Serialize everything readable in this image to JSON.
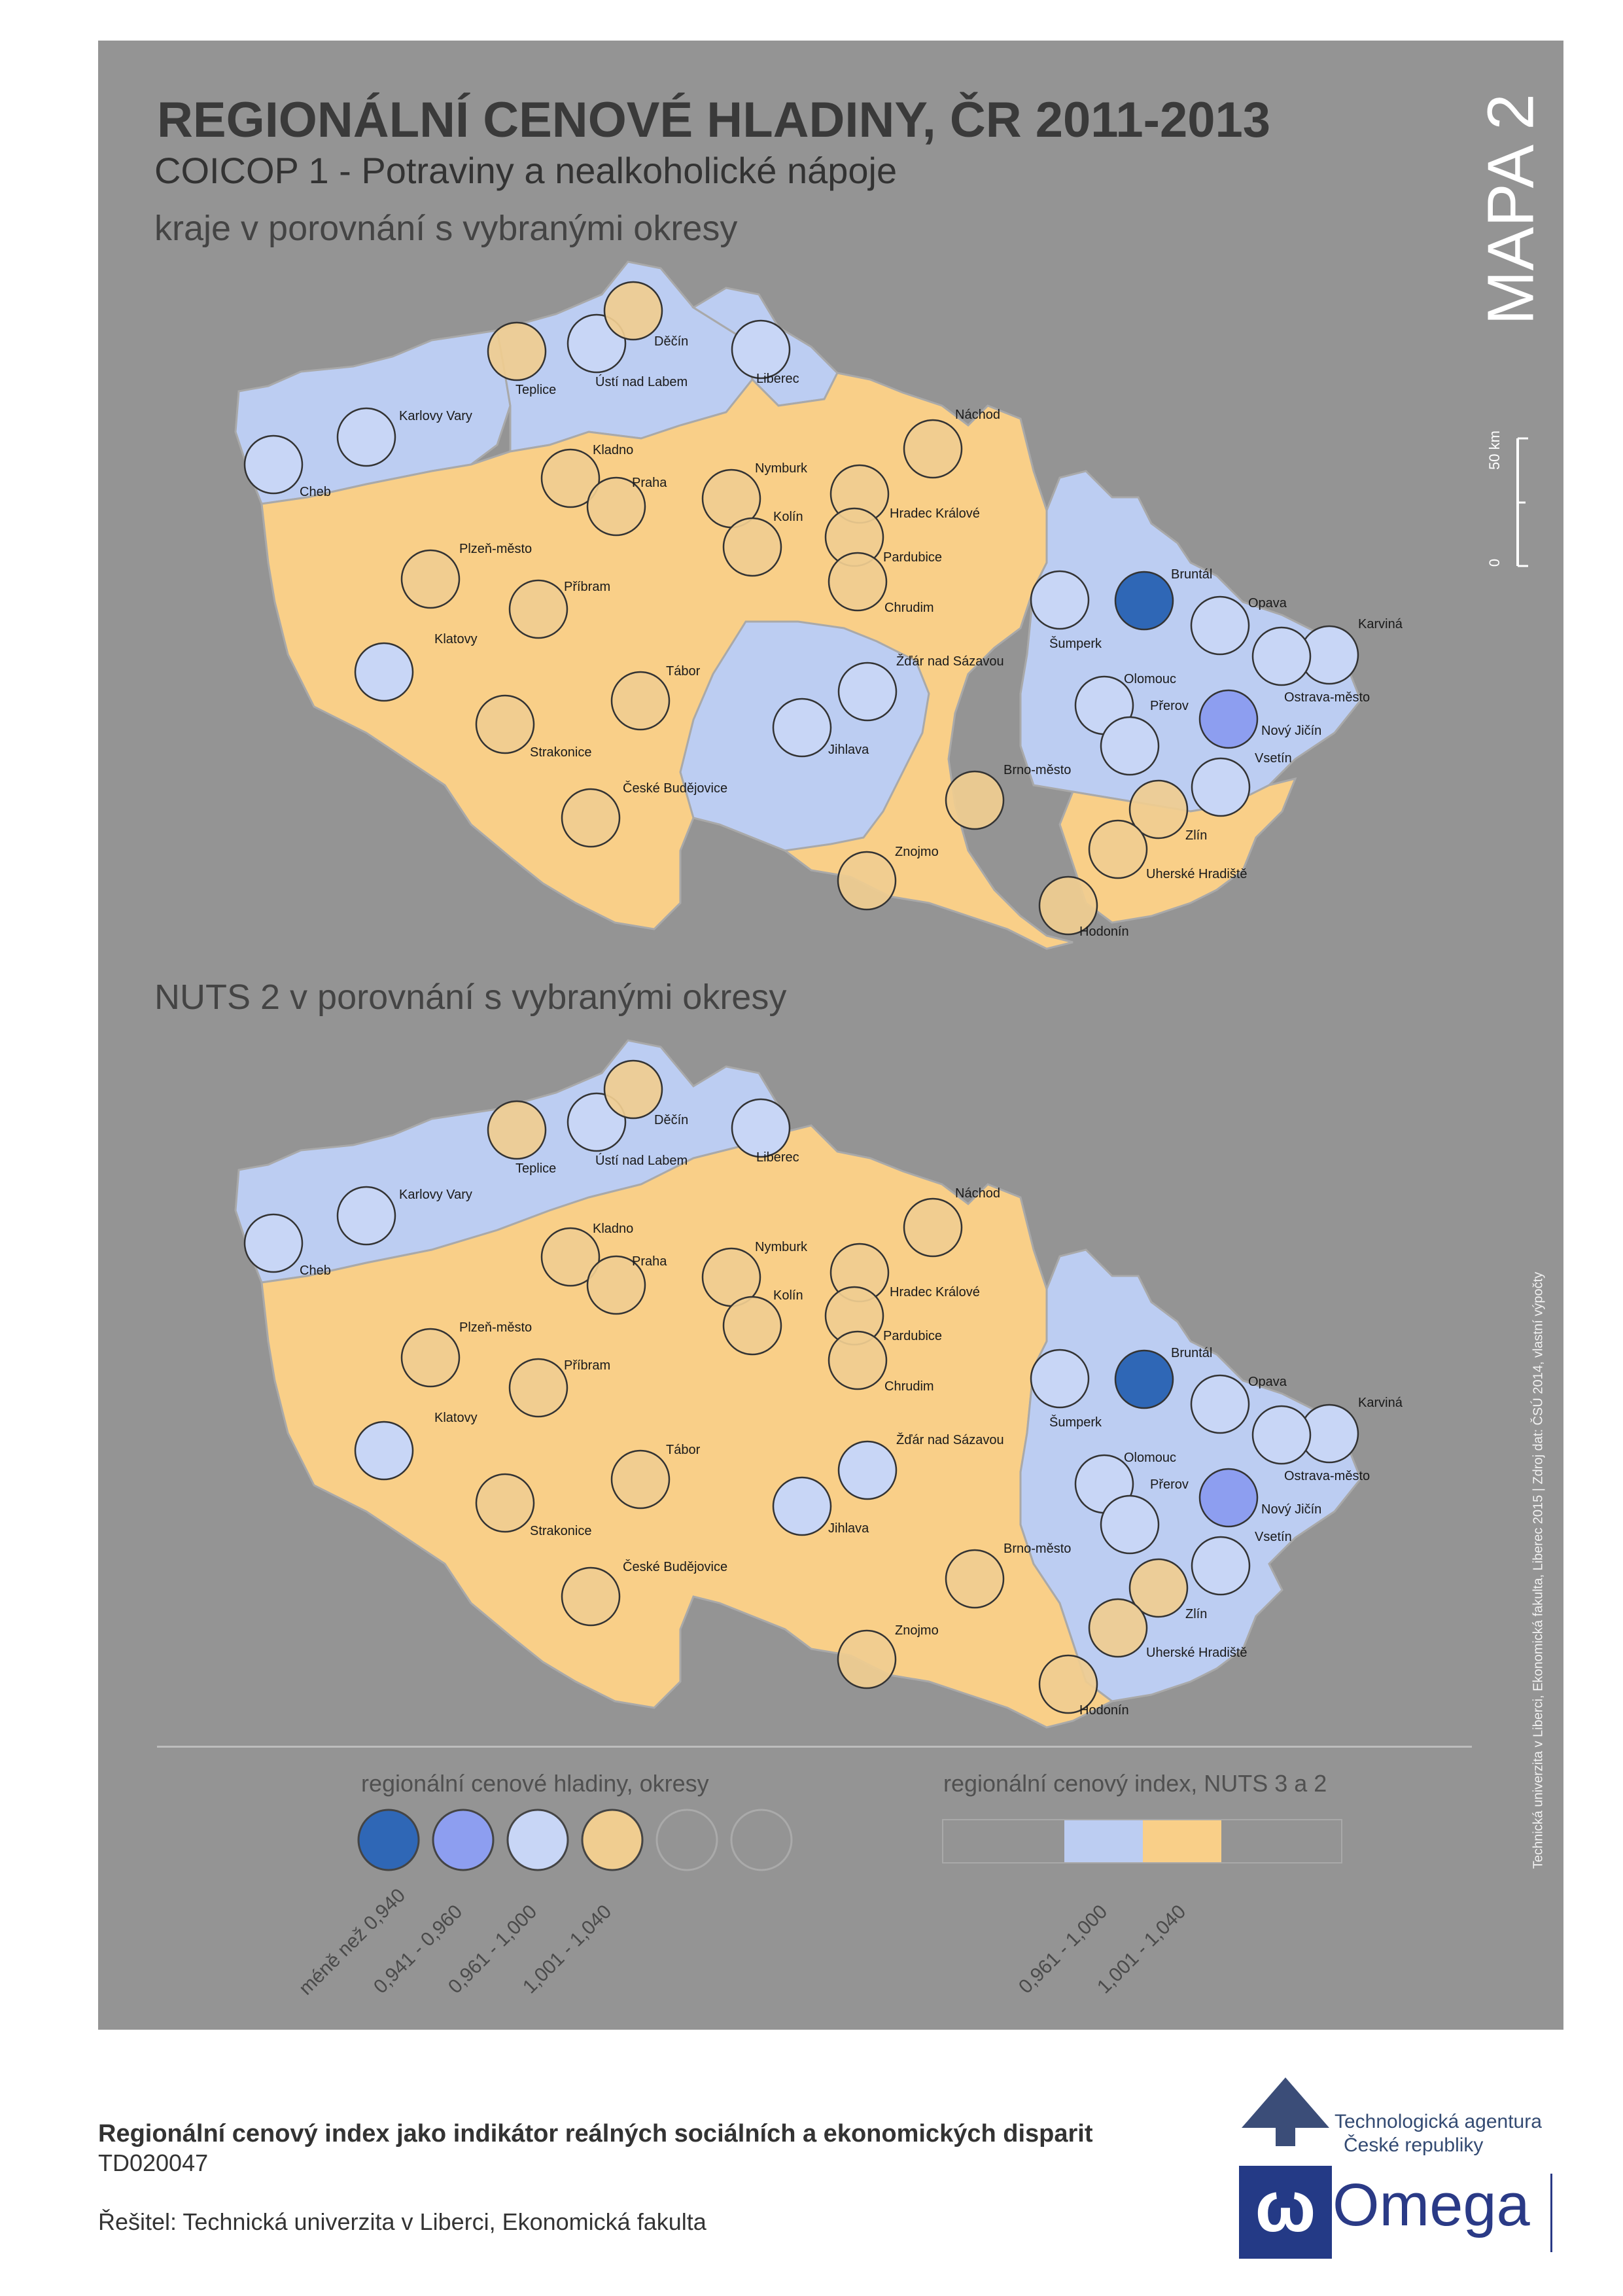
{
  "title": "REGIONÁLNÍ CENOVÉ HLADINY, ČR 2011-2013",
  "subtitle": "COICOP 1 - Potraviny a nealkoholické nápoje",
  "map_label": "MAPA 2",
  "section1_title": "kraje v porovnání s vybranými okresy",
  "section2_title": "NUTS 2 v porovnání s vybranými okresy",
  "scale": {
    "top": "50 km",
    "bottom": "0"
  },
  "credit": "Technická univerzita v Liberci, Ekonomická fakulta, Liberec 2015 | Zdroj dat: ČSÚ 2014, vlastní výpočty",
  "colors": {
    "background": "#949494",
    "region_blue": "#bccdf2",
    "region_orange": "#f9cf88",
    "class1": "#2f67b6",
    "class2": "#8d9ef0",
    "class3": "#c8d6f6",
    "class4": "#f0cd90"
  },
  "legend_districts": {
    "title": "regionální cenové hladiny, okresy",
    "classes": [
      "méně než 0,940",
      "0,941 - 0,960",
      "0,961 - 1,000",
      "1,001 - 1,040"
    ]
  },
  "legend_regions": {
    "title": "regionální cenový index, NUTS 3 a 2",
    "classes": [
      "0,961 - 1,000",
      "1,001 - 1,040"
    ]
  },
  "map1_districts": [
    {
      "name": "Cheb",
      "class": 3
    },
    {
      "name": "Karlovy Vary",
      "class": 3
    },
    {
      "name": "Teplice",
      "class": 4
    },
    {
      "name": "Ústí nad Labem",
      "class": 3
    },
    {
      "name": "Děčín",
      "class": 4
    },
    {
      "name": "Liberec",
      "class": 3
    },
    {
      "name": "Náchod",
      "class": 4
    },
    {
      "name": "Kladno",
      "class": 4
    },
    {
      "name": "Praha",
      "class": 4
    },
    {
      "name": "Nymburk",
      "class": 4
    },
    {
      "name": "Kolín",
      "class": 4
    },
    {
      "name": "Hradec Králové",
      "class": 4
    },
    {
      "name": "Pardubice",
      "class": 4
    },
    {
      "name": "Chrudim",
      "class": 4
    },
    {
      "name": "Plzeň-město",
      "class": 4
    },
    {
      "name": "Příbram",
      "class": 4
    },
    {
      "name": "Klatovy",
      "class": 3
    },
    {
      "name": "Tábor",
      "class": 4
    },
    {
      "name": "Strakonice",
      "class": 4
    },
    {
      "name": "České Budějovice",
      "class": 4
    },
    {
      "name": "Žďár nad Sázavou",
      "class": 3
    },
    {
      "name": "Jihlava",
      "class": 3
    },
    {
      "name": "Brno-město",
      "class": 4
    },
    {
      "name": "Znojmo",
      "class": 4
    },
    {
      "name": "Hodonín",
      "class": 4
    },
    {
      "name": "Šumperk",
      "class": 3
    },
    {
      "name": "Bruntál",
      "class": 1
    },
    {
      "name": "Opava",
      "class": 3
    },
    {
      "name": "Karviná",
      "class": 3
    },
    {
      "name": "Ostrava-město",
      "class": 3
    },
    {
      "name": "Olomouc",
      "class": 3
    },
    {
      "name": "Přerov",
      "class": 3
    },
    {
      "name": "Nový Jičín",
      "class": 2
    },
    {
      "name": "Vsetín",
      "class": 3
    },
    {
      "name": "Zlín",
      "class": 4
    },
    {
      "name": "Uherské Hradiště",
      "class": 4
    }
  ],
  "map2_districts": [
    {
      "name": "Cheb",
      "class": 3
    },
    {
      "name": "Karlovy Vary",
      "class": 3
    },
    {
      "name": "Teplice",
      "class": 4
    },
    {
      "name": "Ústí nad Labem",
      "class": 3
    },
    {
      "name": "Děčín",
      "class": 4
    },
    {
      "name": "Liberec",
      "class": 3
    },
    {
      "name": "Náchod",
      "class": 4
    },
    {
      "name": "Kladno",
      "class": 4
    },
    {
      "name": "Praha",
      "class": 4
    },
    {
      "name": "Nymburk",
      "class": 4
    },
    {
      "name": "Kolín",
      "class": 4
    },
    {
      "name": "Hradec Králové",
      "class": 4
    },
    {
      "name": "Pardubice",
      "class": 4
    },
    {
      "name": "Chrudim",
      "class": 4
    },
    {
      "name": "Plzeň-město",
      "class": 4
    },
    {
      "name": "Příbram",
      "class": 4
    },
    {
      "name": "Klatovy",
      "class": 3
    },
    {
      "name": "Tábor",
      "class": 4
    },
    {
      "name": "Strakonice",
      "class": 4
    },
    {
      "name": "České Budějovice",
      "class": 4
    },
    {
      "name": "Žďár nad Sázavou",
      "class": 3
    },
    {
      "name": "Jihlava",
      "class": 3
    },
    {
      "name": "Brno-město",
      "class": 4
    },
    {
      "name": "Znojmo",
      "class": 4
    },
    {
      "name": "Hodonín",
      "class": 4
    },
    {
      "name": "Šumperk",
      "class": 3
    },
    {
      "name": "Bruntál",
      "class": 1
    },
    {
      "name": "Opava",
      "class": 3
    },
    {
      "name": "Karviná",
      "class": 3
    },
    {
      "name": "Ostrava-město",
      "class": 3
    },
    {
      "name": "Olomouc",
      "class": 3
    },
    {
      "name": "Přerov",
      "class": 3
    },
    {
      "name": "Nový Jičín",
      "class": 2
    },
    {
      "name": "Vsetín",
      "class": 3
    },
    {
      "name": "Zlín",
      "class": 4
    },
    {
      "name": "Uherské Hradiště",
      "class": 4
    }
  ],
  "footer": {
    "project": "Regionální cenový index jako indikátor reálných sociálních a ekonomických disparit",
    "code": "TD020047",
    "solver": "Řešitel: Technická univerzita v Liberci, Ekonomická fakulta"
  },
  "logos": {
    "tacr_line1": "Technologická agentura",
    "tacr_line2": "České republiky",
    "omega": "Omega"
  }
}
